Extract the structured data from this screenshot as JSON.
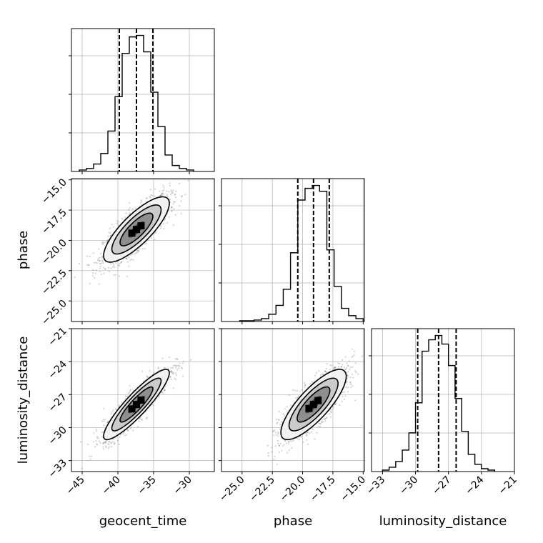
{
  "chart_data": {
    "type": "corner",
    "parameters": [
      {
        "name": "geocent_time",
        "label": "geocent_time",
        "range": [
          -46.5,
          -26.5
        ],
        "ticks": [
          -45,
          -40,
          -35,
          -30
        ],
        "tick_labels": [
          "−45",
          "−40",
          "−35",
          "−30"
        ],
        "quantiles": [
          -39.8,
          -37.4,
          -35.1
        ],
        "hist_bins": [
          -45.4,
          -44.4,
          -43.4,
          -42.4,
          -41.4,
          -40.4,
          -39.4,
          -38.4,
          -37.4,
          -36.4,
          -35.4,
          -34.4,
          -33.4,
          -32.4,
          -31.4,
          -30.4,
          -29.4
        ],
        "hist_counts": [
          1,
          2,
          5,
          12,
          27,
          50,
          79,
          90,
          91,
          80,
          53,
          30,
          11,
          4,
          2,
          1
        ]
      },
      {
        "name": "phase",
        "label": "phase",
        "range": [
          -26.7,
          -14.9
        ],
        "ticks": [
          -25.0,
          -22.5,
          -20.0,
          -17.5,
          -15.0
        ],
        "tick_labels": [
          "−25.0",
          "−22.5",
          "−20.0",
          "−17.5",
          "−15.0"
        ],
        "quantiles": [
          -20.4,
          -19.1,
          -17.8
        ],
        "hist_bins": [
          -25.2,
          -24.6,
          -24.0,
          -23.4,
          -22.8,
          -22.2,
          -21.6,
          -21.0,
          -20.4,
          -19.8,
          -19.2,
          -18.6,
          -18.0,
          -17.4,
          -16.8,
          -16.2,
          -15.6,
          -15.0
        ],
        "hist_counts": [
          0.5,
          0.5,
          1,
          2,
          5,
          11,
          22,
          47,
          83,
          91,
          93,
          89,
          49,
          24,
          9,
          4,
          2
        ]
      },
      {
        "name": "luminosity_distance",
        "label": "luminosity_distance",
        "range": [
          -34.0,
          -21.0
        ],
        "ticks": [
          -33,
          -30,
          -27,
          -24,
          -21
        ],
        "tick_labels": [
          "−33",
          "−30",
          "−27",
          "−24",
          "−21"
        ],
        "quantiles": [
          -29.8,
          -27.9,
          -26.3
        ],
        "hist_bins": [
          -33.0,
          -32.4,
          -31.8,
          -31.2,
          -30.6,
          -30.0,
          -29.4,
          -28.8,
          -28.2,
          -27.6,
          -27.0,
          -26.4,
          -25.8,
          -25.2,
          -24.6,
          -24.0,
          -23.4,
          -22.8
        ],
        "hist_counts": [
          1,
          3,
          7,
          15,
          27,
          48,
          84,
          92,
          95,
          89,
          74,
          51,
          28,
          12,
          5,
          2,
          1
        ]
      }
    ],
    "pairs": [
      {
        "x": "geocent_time",
        "y": "phase",
        "center": [
          -37.4,
          -19.1
        ],
        "sd": [
          2.3,
          1.35
        ],
        "correlation": 0.8
      },
      {
        "x": "geocent_time",
        "y": "luminosity_distance",
        "center": [
          -37.4,
          -27.9
        ],
        "sd": [
          2.3,
          1.6
        ],
        "correlation": 0.9
      },
      {
        "x": "phase",
        "y": "luminosity_distance",
        "center": [
          -19.1,
          -27.9
        ],
        "sd": [
          1.35,
          1.6
        ],
        "correlation": 0.8
      }
    ],
    "contour_levels_sigma": [
      0.5,
      1.0,
      1.5,
      2.0
    ],
    "grid": true,
    "colors": {
      "axes": "#000000",
      "grid": "#b0b0b0",
      "hist": "#000000",
      "quantile": "#000000",
      "scatter": "#6e6e6e",
      "contour_fill_light": "#f4f4f4",
      "contour_fill_dark": "#000000"
    }
  }
}
